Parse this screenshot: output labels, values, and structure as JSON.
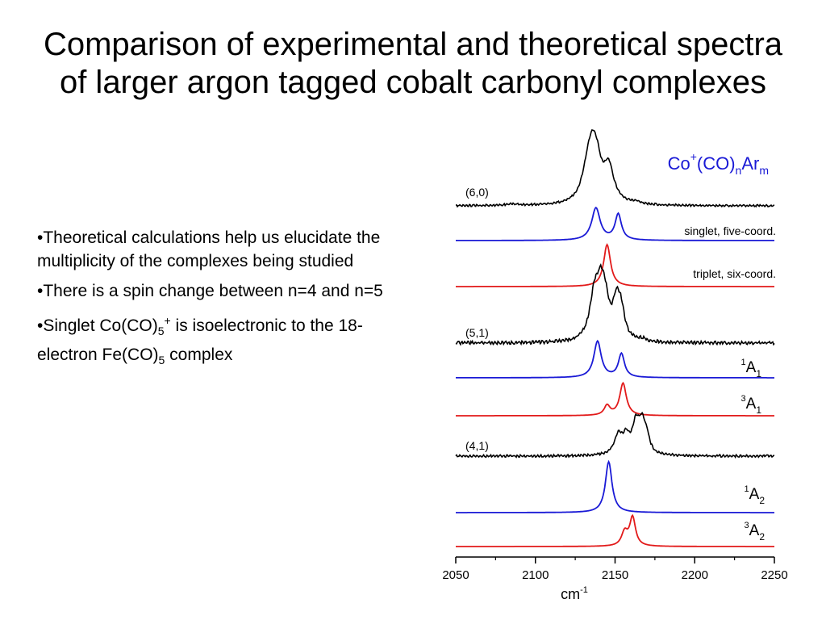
{
  "slide": {
    "title": "Comparison of experimental and theoretical spectra of larger argon tagged cobalt carbonyl complexes",
    "bullets": [
      {
        "parts": [
          {
            "text": "•Theoretical calculations help us elucidate the multiplicity of the complexes being studied"
          }
        ]
      },
      {
        "parts": [
          {
            "text": "•There is a spin change between n=4 and n=5"
          }
        ]
      },
      {
        "parts": [
          {
            "text": "•Singlet Co(CO)"
          },
          {
            "sub": "5"
          },
          {
            "sup": "+"
          },
          {
            "text": " is isoelectronic to the 18-electron Fe(CO)"
          },
          {
            "sub": "5"
          },
          {
            "text": " complex"
          }
        ]
      }
    ]
  },
  "chart_data": {
    "type": "line",
    "heading": {
      "base": "Co",
      "sup": "+",
      "mid": "(CO)",
      "sub_n": "n",
      "tail": "Ar",
      "sub_m": "m"
    },
    "xlabel": {
      "base": "cm",
      "sup": "-1"
    },
    "xlim": [
      2050,
      2250
    ],
    "xticks": [
      2050,
      2100,
      2150,
      2200,
      2250
    ],
    "colors": {
      "experiment": "#000000",
      "singlet": "#1a1ad6",
      "triplet": "#e21a1a"
    },
    "traces": [
      {
        "label": "(6,0)",
        "role": "experiment",
        "peaks": [
          [
            2133,
            4.5,
            0.75
          ],
          [
            2136,
            3.5,
            0.9
          ],
          [
            2139,
            3,
            0.55
          ],
          [
            2146,
            4,
            0.85
          ],
          [
            2163,
            3,
            0.05
          ],
          [
            2085,
            5,
            0.03
          ]
        ],
        "noise": 0.025
      },
      {
        "label": "singlet, five-coord.",
        "role": "singlet",
        "peaks": [
          [
            2138,
            3.2,
            1.0
          ],
          [
            2152,
            2.4,
            0.8
          ]
        ]
      },
      {
        "label": "triplet, six-coord.",
        "role": "triplet",
        "peaks": [
          [
            2145,
            2.6,
            1.0
          ]
        ]
      },
      {
        "label": "(5,1)",
        "role": "experiment",
        "peaks": [
          [
            2137,
            3.5,
            0.9
          ],
          [
            2141,
            3,
            0.95
          ],
          [
            2144,
            2.5,
            0.55
          ],
          [
            2151,
            3,
            0.8
          ],
          [
            2154,
            2.5,
            0.45
          ],
          [
            2167,
            3,
            0.05
          ]
        ],
        "noise": 0.035
      },
      {
        "label": {
          "pre": "1",
          "base": "A",
          "sub": "1"
        },
        "role": "singlet",
        "peaks": [
          [
            2139,
            2.8,
            1.0
          ],
          [
            2154,
            2.3,
            0.65
          ]
        ]
      },
      {
        "label": {
          "pre": "3",
          "base": "A",
          "sub": "1"
        },
        "role": "triplet",
        "peaks": [
          [
            2145,
            2.2,
            0.3
          ],
          [
            2155,
            2.5,
            1.0
          ]
        ]
      },
      {
        "label": "(4,1)",
        "role": "experiment",
        "peaks": [
          [
            2152,
            3,
            0.55
          ],
          [
            2157,
            2.5,
            0.45
          ],
          [
            2163,
            2.6,
            0.8
          ],
          [
            2167,
            2.6,
            0.85
          ],
          [
            2170,
            2,
            0.35
          ]
        ],
        "noise": 0.035
      },
      {
        "label": {
          "pre": "1",
          "base": "A",
          "sub": "2"
        },
        "role": "singlet",
        "peaks": [
          [
            2146,
            2.5,
            1.0
          ]
        ]
      },
      {
        "label": {
          "pre": "3",
          "base": "A",
          "sub": "2"
        },
        "role": "triplet",
        "peaks": [
          [
            2156,
            2.3,
            0.4
          ],
          [
            2161,
            2.2,
            0.85
          ]
        ]
      }
    ]
  }
}
